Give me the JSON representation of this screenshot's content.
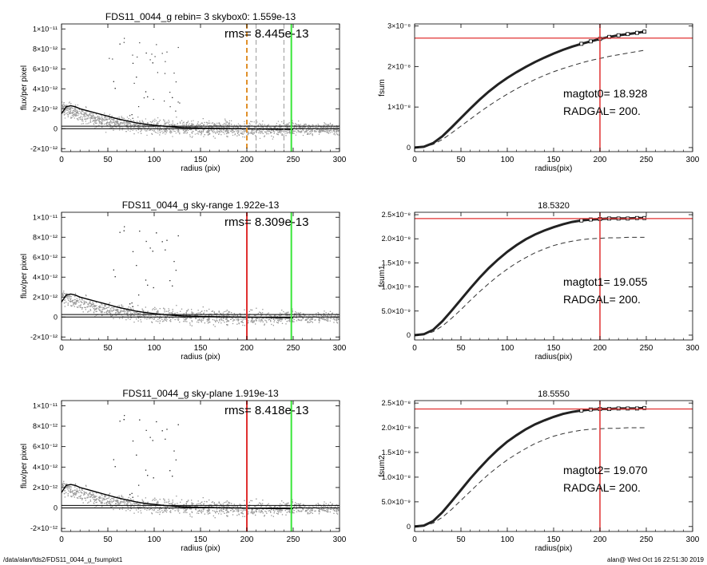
{
  "chart_data": [
    {
      "type": "scatter",
      "panel": "profile",
      "title": "FDS11_0044_g rebin= 3    skybox0:  1.559e-13",
      "annotation": "rms= 8.445e-13",
      "xlabel": "radius (pix)",
      "ylabel": "flux/per pixel",
      "xlim": [
        0,
        300
      ],
      "ylim": [
        -2.3e-12,
        1.05e-11
      ],
      "xticks": [
        "0",
        "50",
        "100",
        "150",
        "200",
        "250",
        "300"
      ],
      "yticks": [
        {
          "v": 1e-11,
          "t": "1×10⁻¹¹"
        },
        {
          "v": 8e-12,
          "t": "8×10⁻¹²"
        },
        {
          "v": 6e-12,
          "t": "6×10⁻¹²"
        },
        {
          "v": 4e-12,
          "t": "4×10⁻¹²"
        },
        {
          "v": 2e-12,
          "t": "2×10⁻¹²"
        },
        {
          "v": 0,
          "t": "0"
        },
        {
          "v": -2e-12,
          "t": "-2×10⁻¹²"
        }
      ],
      "profile_x": [
        0,
        5,
        10,
        15,
        20,
        30,
        40,
        50,
        60,
        70,
        80,
        90,
        100,
        110,
        120,
        130,
        150,
        170,
        190,
        210,
        230,
        250
      ],
      "profile_y": [
        1.5e-12,
        2.2e-12,
        2.3e-12,
        2.2e-12,
        2e-12,
        1.75e-12,
        1.5e-12,
        1.25e-12,
        1e-12,
        8e-13,
        6e-13,
        4.5e-13,
        3.5e-13,
        2.5e-13,
        1.8e-13,
        1.2e-13,
        6e-14,
        2e-14,
        0,
        -3e-14,
        -5e-14,
        -6e-14
      ],
      "hlines": [
        {
          "y": 2.5e-13,
          "style": "solid",
          "color": "#000000"
        },
        {
          "y": 0,
          "style": "solid",
          "color": "#000000"
        }
      ],
      "vlines": [
        {
          "x": 200,
          "style": "dashed",
          "color": "#e0902a",
          "width": 2
        },
        {
          "x": 210,
          "style": "dashed",
          "color": "#999999",
          "width": 1
        },
        {
          "x": 240,
          "style": "dashed",
          "color": "#999999",
          "width": 1
        },
        {
          "x": 248,
          "style": "solid",
          "color": "#39e639",
          "width": 2
        }
      ]
    },
    {
      "type": "line",
      "panel": "growth",
      "title": "",
      "text_lines": [
        "magtot0=  18.928",
        "RADGAL=    200."
      ],
      "xlabel": "radius(pix)",
      "ylabel": "fsum",
      "xlim": [
        0,
        300
      ],
      "ylim": [
        -1e-09,
        3.05e-08
      ],
      "xticks": [
        "0",
        "50",
        "100",
        "150",
        "200",
        "250",
        "300"
      ],
      "yticks": [
        {
          "v": 3e-08,
          "t": "3×10⁻⁸"
        },
        {
          "v": 2e-08,
          "t": "2×10⁻⁸"
        },
        {
          "v": 1e-08,
          "t": "1×10⁻⁸"
        },
        {
          "v": 0,
          "t": "0"
        }
      ],
      "curve_x": [
        0,
        10,
        20,
        30,
        40,
        50,
        60,
        70,
        80,
        90,
        100,
        110,
        120,
        130,
        140,
        150,
        160,
        170,
        180,
        190,
        200,
        210,
        220,
        230,
        240,
        248
      ],
      "curve_y": [
        0,
        2e-10,
        1.1e-09,
        2.8e-09,
        5e-09,
        7.3e-09,
        9.6e-09,
        1.18e-08,
        1.38e-08,
        1.56e-08,
        1.72e-08,
        1.86e-08,
        1.99e-08,
        2.11e-08,
        2.22e-08,
        2.32e-08,
        2.41e-08,
        2.49e-08,
        2.56e-08,
        2.62e-08,
        2.68e-08,
        2.73e-08,
        2.77e-08,
        2.8e-08,
        2.83e-08,
        2.86e-08
      ],
      "dashed_y": [
        0,
        1.5e-10,
        8e-10,
        2e-09,
        3.6e-09,
        5.3e-09,
        7e-09,
        8.7e-09,
        1.03e-08,
        1.18e-08,
        1.32e-08,
        1.45e-08,
        1.57e-08,
        1.68e-08,
        1.78e-08,
        1.87e-08,
        1.95e-08,
        2.02e-08,
        2.09e-08,
        2.15e-08,
        2.2e-08,
        2.25e-08,
        2.29e-08,
        2.33e-08,
        2.37e-08,
        2.4e-08
      ],
      "red_vline_x": 200,
      "red_hline_y": 2.7e-08
    },
    {
      "type": "scatter",
      "panel": "profile",
      "title": "FDS11_0044_g sky-range  1.922e-13",
      "annotation": "rms= 8.309e-13",
      "xlabel": "radius (pix)",
      "ylabel": "flux/per pixel",
      "xlim": [
        0,
        300
      ],
      "ylim": [
        -2.3e-12,
        1.05e-11
      ],
      "xticks": [
        "0",
        "50",
        "100",
        "150",
        "200",
        "250",
        "300"
      ],
      "yticks": [
        {
          "v": 1e-11,
          "t": "1×10⁻¹¹"
        },
        {
          "v": 8e-12,
          "t": "8×10⁻¹²"
        },
        {
          "v": 6e-12,
          "t": "6×10⁻¹²"
        },
        {
          "v": 4e-12,
          "t": "4×10⁻¹²"
        },
        {
          "v": 2e-12,
          "t": "2×10⁻¹²"
        },
        {
          "v": 0,
          "t": "0"
        },
        {
          "v": -2e-12,
          "t": "-2×10⁻¹²"
        }
      ],
      "profile_x": [
        0,
        5,
        10,
        15,
        20,
        30,
        40,
        50,
        60,
        70,
        80,
        90,
        100,
        110,
        120,
        130,
        150,
        170,
        190,
        210,
        230,
        250
      ],
      "profile_y": [
        1.5e-12,
        2.2e-12,
        2.3e-12,
        2.2e-12,
        2e-12,
        1.75e-12,
        1.5e-12,
        1.25e-12,
        1e-12,
        8e-13,
        6e-13,
        4.5e-13,
        3.5e-13,
        2.5e-13,
        1.8e-13,
        1.2e-13,
        6e-14,
        2e-14,
        0,
        -3e-14,
        -5e-14,
        -6e-14
      ],
      "hlines": [
        {
          "y": 2.5e-13,
          "style": "solid",
          "color": "#000000"
        },
        {
          "y": 0,
          "style": "solid",
          "color": "#000000"
        }
      ],
      "vlines": [
        {
          "x": 200,
          "style": "solid",
          "color": "#e03030",
          "width": 2
        },
        {
          "x": 248,
          "style": "solid",
          "color": "#39e639",
          "width": 2
        }
      ]
    },
    {
      "type": "line",
      "panel": "growth",
      "title": "18.5320",
      "text_lines": [
        "magtot1=  19.055",
        "RADGAL=    200."
      ],
      "xlabel": "radius(pix)",
      "ylabel": "fsum1",
      "xlim": [
        0,
        300
      ],
      "ylim": [
        -1e-09,
        2.55e-08
      ],
      "xticks": [
        "0",
        "50",
        "100",
        "150",
        "200",
        "250",
        "300"
      ],
      "yticks": [
        {
          "v": 2.5e-08,
          "t": "2.5×10⁻⁸"
        },
        {
          "v": 2e-08,
          "t": "2.0×10⁻⁸"
        },
        {
          "v": 1.5e-08,
          "t": "1.5×10⁻⁸"
        },
        {
          "v": 1e-08,
          "t": "1.0×10⁻⁸"
        },
        {
          "v": 5e-09,
          "t": "5.0×10⁻⁹"
        },
        {
          "v": 0,
          "t": "0"
        }
      ],
      "curve_x": [
        0,
        10,
        20,
        30,
        40,
        50,
        60,
        70,
        80,
        90,
        100,
        110,
        120,
        130,
        140,
        150,
        160,
        170,
        180,
        190,
        200,
        210,
        220,
        230,
        240,
        248
      ],
      "curve_y": [
        0,
        2e-10,
        1.1e-09,
        2.9e-09,
        5.1e-09,
        7.4e-09,
        9.7e-09,
        1.19e-08,
        1.39e-08,
        1.57e-08,
        1.73e-08,
        1.87e-08,
        1.99e-08,
        2.09e-08,
        2.17e-08,
        2.24e-08,
        2.3e-08,
        2.35e-08,
        2.38e-08,
        2.4e-08,
        2.41e-08,
        2.42e-08,
        2.42e-08,
        2.42e-08,
        2.43e-08,
        2.43e-08
      ],
      "dashed_y": [
        0,
        1.5e-10,
        7e-10,
        1.9e-09,
        3.5e-09,
        5.3e-09,
        7.2e-09,
        9e-09,
        1.07e-08,
        1.23e-08,
        1.37e-08,
        1.5e-08,
        1.61e-08,
        1.71e-08,
        1.79e-08,
        1.86e-08,
        1.91e-08,
        1.95e-08,
        1.98e-08,
        2e-08,
        2.01e-08,
        2.02e-08,
        2.02e-08,
        2.03e-08,
        2.03e-08,
        2.03e-08
      ],
      "red_vline_x": 200,
      "red_hline_y": 2.42e-08
    },
    {
      "type": "scatter",
      "panel": "profile",
      "title": "FDS11_0044_g sky-plane  1.919e-13",
      "annotation": "rms= 8.418e-13",
      "xlabel": "radius (pix)",
      "ylabel": "flux/per pixel",
      "xlim": [
        0,
        300
      ],
      "ylim": [
        -2.3e-12,
        1.05e-11
      ],
      "xticks": [
        "0",
        "50",
        "100",
        "150",
        "200",
        "250",
        "300"
      ],
      "yticks": [
        {
          "v": 1e-11,
          "t": "1×10⁻¹¹"
        },
        {
          "v": 8e-12,
          "t": "8×10⁻¹²"
        },
        {
          "v": 6e-12,
          "t": "6×10⁻¹²"
        },
        {
          "v": 4e-12,
          "t": "4×10⁻¹²"
        },
        {
          "v": 2e-12,
          "t": "2×10⁻¹²"
        },
        {
          "v": 0,
          "t": "0"
        },
        {
          "v": -2e-12,
          "t": "-2×10⁻¹²"
        }
      ],
      "profile_x": [
        0,
        5,
        10,
        15,
        20,
        30,
        40,
        50,
        60,
        70,
        80,
        90,
        100,
        110,
        120,
        130,
        150,
        170,
        190,
        210,
        230,
        250
      ],
      "profile_y": [
        1.5e-12,
        2.2e-12,
        2.3e-12,
        2.2e-12,
        2e-12,
        1.75e-12,
        1.5e-12,
        1.25e-12,
        1e-12,
        8e-13,
        6e-13,
        4.5e-13,
        3.5e-13,
        2.5e-13,
        1.8e-13,
        1.2e-13,
        6e-14,
        2e-14,
        0,
        -3e-14,
        -5e-14,
        -6e-14
      ],
      "hlines": [
        {
          "y": 2.5e-13,
          "style": "solid",
          "color": "#000000"
        },
        {
          "y": 0,
          "style": "solid",
          "color": "#000000"
        }
      ],
      "vlines": [
        {
          "x": 200,
          "style": "solid",
          "color": "#e03030",
          "width": 2
        },
        {
          "x": 248,
          "style": "solid",
          "color": "#39e639",
          "width": 2
        }
      ]
    },
    {
      "type": "line",
      "panel": "growth",
      "title": "18.5550",
      "text_lines": [
        "magtot2=  19.070",
        "RADGAL=    200."
      ],
      "xlabel": "radius(pix)",
      "ylabel": "fsum2",
      "xlim": [
        0,
        300
      ],
      "ylim": [
        -1e-09,
        2.55e-08
      ],
      "xticks": [
        "0",
        "50",
        "100",
        "150",
        "200",
        "250",
        "300"
      ],
      "yticks": [
        {
          "v": 2.5e-08,
          "t": "2.5×10⁻⁸"
        },
        {
          "v": 2e-08,
          "t": "2.0×10⁻⁸"
        },
        {
          "v": 1.5e-08,
          "t": "1.5×10⁻⁸"
        },
        {
          "v": 1e-08,
          "t": "1.0×10⁻⁸"
        },
        {
          "v": 5e-09,
          "t": "5.0×10⁻⁹"
        },
        {
          "v": 0,
          "t": "0"
        }
      ],
      "curve_x": [
        0,
        10,
        20,
        30,
        40,
        50,
        60,
        70,
        80,
        90,
        100,
        110,
        120,
        130,
        140,
        150,
        160,
        170,
        180,
        190,
        200,
        210,
        220,
        230,
        240,
        248
      ],
      "curve_y": [
        0,
        2e-10,
        1.1e-09,
        2.9e-09,
        5.1e-09,
        7.4e-09,
        9.7e-09,
        1.18e-08,
        1.38e-08,
        1.56e-08,
        1.72e-08,
        1.85e-08,
        1.97e-08,
        2.07e-08,
        2.15e-08,
        2.22e-08,
        2.28e-08,
        2.32e-08,
        2.35e-08,
        2.37e-08,
        2.38e-08,
        2.38e-08,
        2.39e-08,
        2.39e-08,
        2.39e-08,
        2.4e-08
      ],
      "dashed_y": [
        0,
        1.5e-10,
        7e-10,
        1.9e-09,
        3.5e-09,
        5.3e-09,
        7.1e-09,
        8.9e-09,
        1.06e-08,
        1.21e-08,
        1.35e-08,
        1.47e-08,
        1.58e-08,
        1.68e-08,
        1.76e-08,
        1.83e-08,
        1.88e-08,
        1.92e-08,
        1.95e-08,
        1.97e-08,
        1.98e-08,
        1.99e-08,
        1.99e-08,
        2e-08,
        2e-08,
        2e-08
      ],
      "red_vline_x": 200,
      "red_hline_y": 2.38e-08
    }
  ],
  "footer": {
    "left": "/data/alan/fds2/FDS11_0044_g_fsumplot1",
    "right": "alan@  Wed Oct 16 22:51:30 2019"
  },
  "colors": {
    "scatter_points": "#9a9a9a",
    "scatter_dark_points": "#333333",
    "profile_line": "#000000",
    "red_line": "#e03030",
    "green_line": "#39e639",
    "orange_line": "#e0902a"
  }
}
